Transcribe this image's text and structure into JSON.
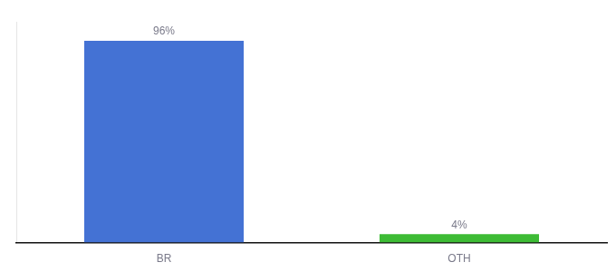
{
  "chart_data": {
    "type": "bar",
    "categories": [
      "BR",
      "OTH"
    ],
    "values": [
      96,
      4
    ],
    "value_labels": [
      "96%",
      "4%"
    ],
    "colors": [
      "#4472d4",
      "#3dbb35"
    ],
    "ylim": [
      0,
      105
    ],
    "tick_labels": "x",
    "data_labels": true,
    "grid": false
  }
}
